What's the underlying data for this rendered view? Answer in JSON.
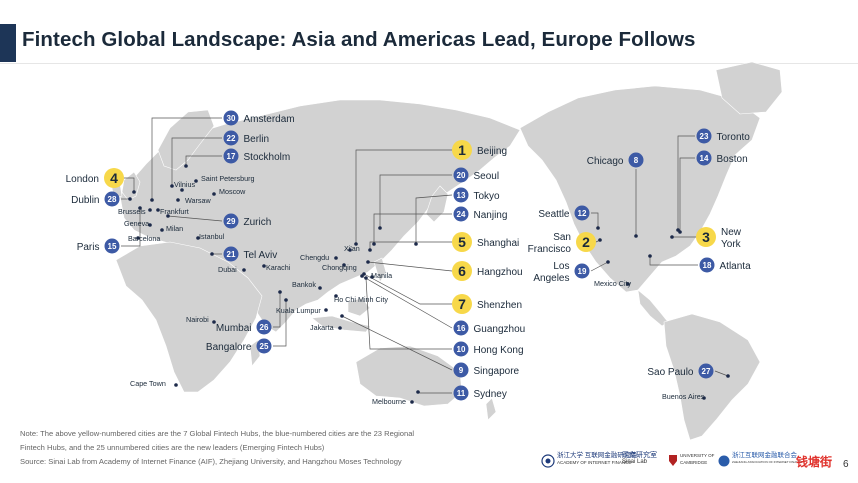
{
  "title": "Fintech Global Landscape: Asia and Americas Lead, Europe Follows",
  "colors": {
    "hub_yellow": "#f7d84a",
    "regional_blue": "#3d5aa5",
    "map_gray": "#d2d2d2",
    "title_bar": "#1d3557"
  },
  "global_hubs": [
    {
      "n": "1",
      "name": "Beijing"
    },
    {
      "n": "2",
      "name": "San Francisco"
    },
    {
      "n": "3",
      "name": "New York"
    },
    {
      "n": "4",
      "name": "London"
    },
    {
      "n": "5",
      "name": "Shanghai"
    },
    {
      "n": "6",
      "name": "Hangzhou"
    },
    {
      "n": "7",
      "name": "Shenzhen"
    }
  ],
  "regional_hubs": [
    {
      "n": "8",
      "name": "Chicago"
    },
    {
      "n": "9",
      "name": "Singapore"
    },
    {
      "n": "10",
      "name": "Hong Kong"
    },
    {
      "n": "11",
      "name": "Sydney"
    },
    {
      "n": "12",
      "name": "Seattle"
    },
    {
      "n": "13",
      "name": "Tokyo"
    },
    {
      "n": "14",
      "name": "Boston"
    },
    {
      "n": "15",
      "name": "Paris"
    },
    {
      "n": "16",
      "name": "Guangzhou"
    },
    {
      "n": "17",
      "name": "Stockholm"
    },
    {
      "n": "18",
      "name": "Atlanta"
    },
    {
      "n": "19",
      "name": "Los Angeles"
    },
    {
      "n": "20",
      "name": "Seoul"
    },
    {
      "n": "21",
      "name": "Tel Aviv"
    },
    {
      "n": "22",
      "name": "Berlin"
    },
    {
      "n": "23",
      "name": "Toronto"
    },
    {
      "n": "24",
      "name": "Nanjing"
    },
    {
      "n": "25",
      "name": "Bangalore"
    },
    {
      "n": "26",
      "name": "Mumbai"
    },
    {
      "n": "27",
      "name": "Sao Paulo"
    },
    {
      "n": "28",
      "name": "Dublin"
    },
    {
      "n": "29",
      "name": "Zurich"
    },
    {
      "n": "30",
      "name": "Amsterdam"
    }
  ],
  "emerging_cities": [
    "Saint Petersburg",
    "Vilnius",
    "Moscow",
    "Warsaw",
    "Brussels",
    "Frankfurt",
    "Geneva",
    "Milan",
    "Barcelona",
    "Istanbul",
    "Dubai",
    "Karachi",
    "Xi'an",
    "Chengdu",
    "Chongqing",
    "Manila",
    "Bankok",
    "Ho Chi Minh City",
    "Kuala Lumpur",
    "Jakarta",
    "Nairobi",
    "Cape Town",
    "Melbourne",
    "Mexico City",
    "Buenos Aires"
  ],
  "notes": [
    "Note: The above yellow-numbered cities are the 7 Global Fintech Hubs, the blue-numbered cities are the 23 Regional",
    "Fintech Hubs, and the 25 unnumbered cities are the new leaders (Emerging Fintech Hubs)",
    "Source: Sinai Lab from Academy of Internet Finance (AIF), Zhejiang University, and Hangzhou Moses Technology"
  ],
  "logos": {
    "aif_cn": "浙江大学 互联网金融研究院",
    "aif_en": "ACADEMY OF INTERNET FINANCE",
    "sinai_cn": "司南研究室",
    "sinai_en": "Sinai Lab",
    "cambridge": "UNIVERSITY OF CAMBRIDGE",
    "zj_cn": "浙江互联网金融联合会",
    "zj_en": "ZHEJIANG ASSOCIATION OF INTERNET FINANCE",
    "brand": "钱塘街"
  },
  "page_number": "6"
}
